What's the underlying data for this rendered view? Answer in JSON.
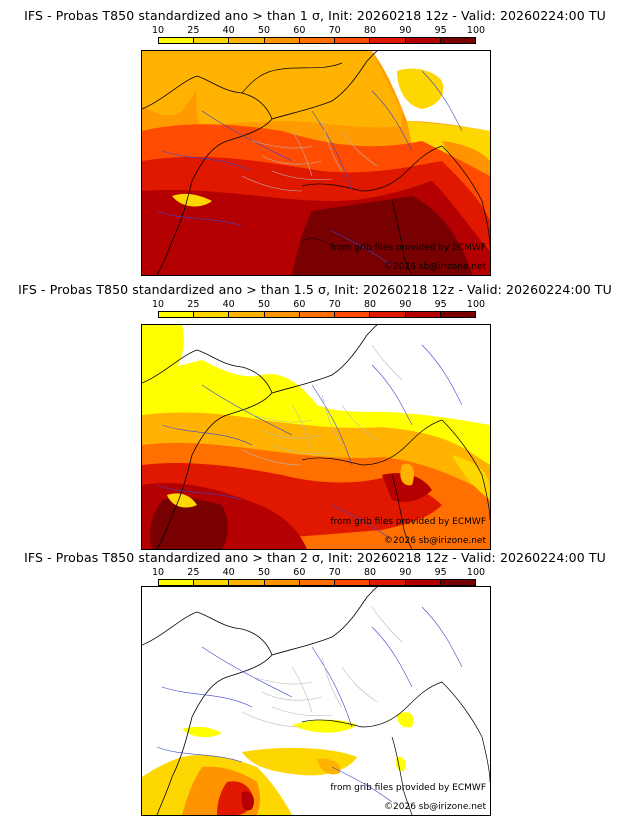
{
  "colorbar": {
    "ticks": [
      "10",
      "25",
      "40",
      "50",
      "60",
      "70",
      "80",
      "90",
      "95",
      "100"
    ],
    "colors": [
      "#ffff00",
      "#ffd700",
      "#ffb300",
      "#ff9400",
      "#ff7000",
      "#ff4c00",
      "#e01800",
      "#b40000",
      "#780000"
    ]
  },
  "panels": [
    {
      "title": "IFS - Probas T850  standardized ano > than 1 σ, Init: 20260218 12z - Valid: 20260224:00 TU",
      "credit_source": "from grib files provided by ECMWF",
      "credit_copyright": "©2026 sb@irizone.net"
    },
    {
      "title": "IFS - Probas T850  standardized ano > than 1.5 σ, Init: 20260218 12z - Valid: 20260224:00 TU",
      "credit_source": "from grib files provided by ECMWF",
      "credit_copyright": "©2026 sb@irizone.net"
    },
    {
      "title": "IFS - Probas T850  standardized ano > than 2 σ, Init: 20260218 12z - Valid: 20260224:00 TU",
      "credit_source": "from grib files provided by ECMWF",
      "credit_copyright": "©2026 sb@irizone.net"
    }
  ]
}
